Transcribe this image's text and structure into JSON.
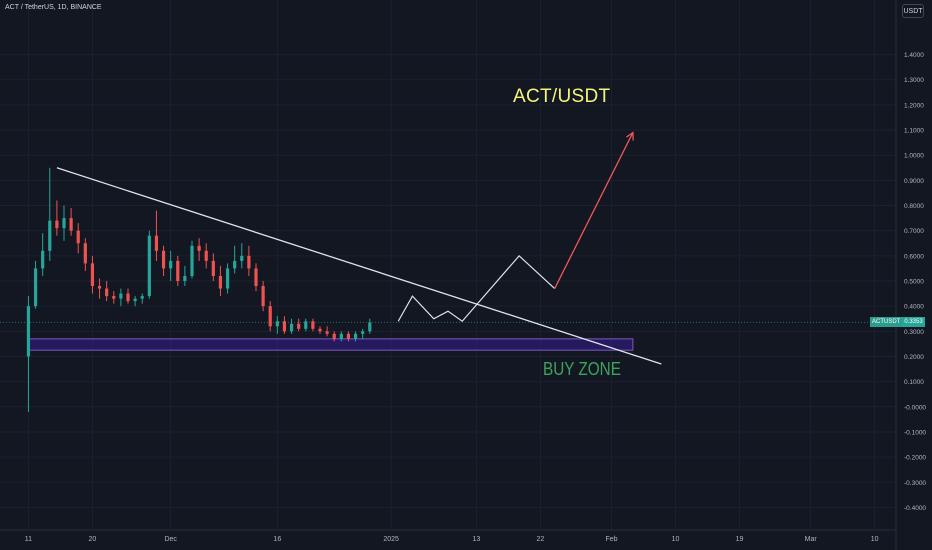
{
  "header": {
    "symbol_line": "ACT / TetherUS, 1D, BINANCE"
  },
  "toolbar": {
    "unit_label": "USDT"
  },
  "price_tag": {
    "symbol": "ACTUSDT",
    "value": "0.3353",
    "price": 0.3353,
    "color": "#26a69a"
  },
  "annotations": {
    "title": "ACT/USDT",
    "buy_zone": "BUY ZONE"
  },
  "colors": {
    "background": "#131722",
    "up": "#26a69a",
    "down": "#ef5350",
    "trendline": "#e0e3eb",
    "projection": "#e0e3eb",
    "arrow": "#f05757",
    "zone_fill": "#3f1fa8",
    "zone_border": "#7e57c2"
  },
  "chart_data": {
    "type": "candlestick",
    "y_ticks": [
      "1.4000",
      "1.3000",
      "1.2000",
      "1.1000",
      "1.0000",
      "0.9000",
      "0.8000",
      "0.7000",
      "0.6000",
      "0.5000",
      "0.4000",
      "0.3000",
      "0.2000",
      "0.1000",
      "-0.0000",
      "-0.1000",
      "-0.2000",
      "-0.3000",
      "-0.4000"
    ],
    "ylim": [
      -0.45,
      1.45
    ],
    "x_ticks": [
      "11",
      "20",
      "Dec",
      "16",
      "2025",
      "13",
      "22",
      "Feb",
      "10",
      "19",
      "Mar",
      "10"
    ],
    "xlim": [
      "2024-11-07",
      "2025-03-13"
    ],
    "x_tick_dates": [
      "2024-11-11",
      "2024-11-20",
      "2024-12-01",
      "2024-12-16",
      "2025-01-01",
      "2025-01-13",
      "2025-01-22",
      "2025-02-01",
      "2025-02-10",
      "2025-02-19",
      "2025-03-01",
      "2025-03-10"
    ],
    "candles_start": "2024-11-11",
    "candles": [
      [
        0.2,
        0.44,
        -0.02,
        0.4
      ],
      [
        0.4,
        0.58,
        0.39,
        0.55
      ],
      [
        0.55,
        0.69,
        0.52,
        0.62
      ],
      [
        0.62,
        0.95,
        0.58,
        0.74
      ],
      [
        0.74,
        0.82,
        0.68,
        0.71
      ],
      [
        0.71,
        0.8,
        0.66,
        0.75
      ],
      [
        0.75,
        0.79,
        0.68,
        0.7
      ],
      [
        0.7,
        0.73,
        0.61,
        0.65
      ],
      [
        0.65,
        0.67,
        0.54,
        0.57
      ],
      [
        0.57,
        0.6,
        0.45,
        0.48
      ],
      [
        0.48,
        0.51,
        0.43,
        0.47
      ],
      [
        0.47,
        0.5,
        0.42,
        0.44
      ],
      [
        0.44,
        0.46,
        0.41,
        0.43
      ],
      [
        0.43,
        0.47,
        0.4,
        0.45
      ],
      [
        0.45,
        0.47,
        0.41,
        0.42
      ],
      [
        0.42,
        0.44,
        0.4,
        0.43
      ],
      [
        0.43,
        0.45,
        0.41,
        0.44
      ],
      [
        0.44,
        0.7,
        0.43,
        0.68
      ],
      [
        0.68,
        0.78,
        0.58,
        0.62
      ],
      [
        0.62,
        0.64,
        0.52,
        0.55
      ],
      [
        0.55,
        0.62,
        0.5,
        0.58
      ],
      [
        0.58,
        0.6,
        0.48,
        0.5
      ],
      [
        0.5,
        0.56,
        0.48,
        0.52
      ],
      [
        0.52,
        0.66,
        0.51,
        0.64
      ],
      [
        0.64,
        0.67,
        0.58,
        0.62
      ],
      [
        0.62,
        0.65,
        0.55,
        0.58
      ],
      [
        0.58,
        0.61,
        0.5,
        0.52
      ],
      [
        0.52,
        0.56,
        0.44,
        0.47
      ],
      [
        0.47,
        0.57,
        0.45,
        0.55
      ],
      [
        0.55,
        0.64,
        0.53,
        0.58
      ],
      [
        0.58,
        0.65,
        0.55,
        0.6
      ],
      [
        0.6,
        0.64,
        0.52,
        0.55
      ],
      [
        0.55,
        0.57,
        0.46,
        0.48
      ],
      [
        0.48,
        0.5,
        0.38,
        0.4
      ],
      [
        0.4,
        0.42,
        0.3,
        0.32
      ],
      [
        0.32,
        0.36,
        0.29,
        0.34
      ],
      [
        0.34,
        0.36,
        0.29,
        0.3
      ],
      [
        0.3,
        0.35,
        0.29,
        0.33
      ],
      [
        0.33,
        0.35,
        0.3,
        0.31
      ],
      [
        0.31,
        0.35,
        0.3,
        0.34
      ],
      [
        0.34,
        0.35,
        0.3,
        0.31
      ],
      [
        0.31,
        0.32,
        0.29,
        0.3
      ],
      [
        0.3,
        0.32,
        0.28,
        0.29
      ],
      [
        0.29,
        0.3,
        0.26,
        0.27
      ],
      [
        0.27,
        0.3,
        0.26,
        0.29
      ],
      [
        0.29,
        0.3,
        0.26,
        0.27
      ],
      [
        0.27,
        0.3,
        0.26,
        0.29
      ],
      [
        0.29,
        0.31,
        0.27,
        0.3
      ],
      [
        0.3,
        0.35,
        0.29,
        0.3353
      ]
    ],
    "trendline": [
      [
        "2024-11-15",
        0.95
      ],
      [
        "2025-02-08",
        0.17
      ]
    ],
    "buy_zone": {
      "x_start": "2024-11-11",
      "x_end": "2025-02-04",
      "y_low": 0.225,
      "y_high": 0.27
    },
    "projection": [
      [
        "2025-01-02",
        0.34
      ],
      [
        "2025-01-04",
        0.44
      ],
      [
        "2025-01-07",
        0.35
      ],
      [
        "2025-01-09",
        0.38
      ],
      [
        "2025-01-11",
        0.34
      ],
      [
        "2025-01-19",
        0.6
      ],
      [
        "2025-01-24",
        0.47
      ]
    ],
    "arrow": [
      [
        "2025-01-24",
        0.47
      ],
      [
        "2025-02-04",
        1.09
      ]
    ]
  }
}
